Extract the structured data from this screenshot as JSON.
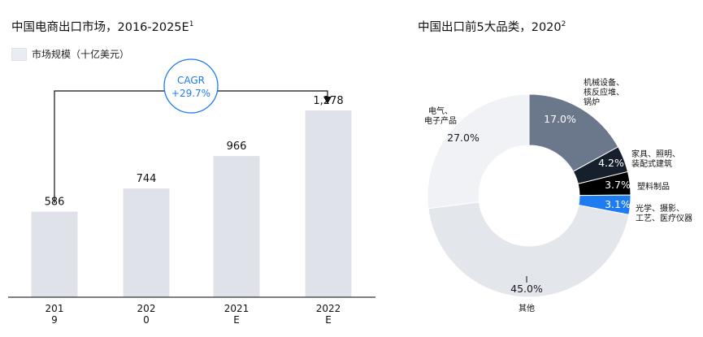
{
  "left_chart": {
    "title": "中国电商出口市场，2016-2025E",
    "title_sup": "1",
    "legend_label": "市场规模（十亿美元）",
    "cagr_label": "CAGR",
    "cagr_value": "+29.7%"
  },
  "right_chart": {
    "title": "中国出口前5大品类，2020",
    "title_sup": "2"
  },
  "colors": {
    "bar": "#dfe3e9",
    "slice_machinery": "#6b778a",
    "slice_furniture": "#16202c",
    "slice_plastics": "#000000",
    "slice_optical": "#1f7bf2",
    "slice_other": "#e3e7ec",
    "slice_electronics": "#f0f2f5",
    "cagr_accent": "#1f7bf2"
  },
  "chart_data": [
    {
      "type": "bar",
      "categories": [
        [
          "201",
          "9"
        ],
        [
          "202",
          "0"
        ],
        [
          "2021",
          "E"
        ],
        [
          "2022",
          "E"
        ]
      ],
      "values": [
        586,
        744,
        966,
        1278
      ],
      "value_labels": [
        "586",
        "744",
        "966",
        "1,278"
      ],
      "title": "中国电商出口市场，2016-2025E",
      "ylabel": "市场规模（十亿美元）",
      "ylim": [
        0,
        1400
      ],
      "grid": false
    },
    {
      "type": "pie",
      "donut": true,
      "title": "中国出口前5大品类，2020",
      "slices": [
        {
          "key": "machinery",
          "label_lines": [
            "机械设备、",
            "核反应堆、",
            "锅炉"
          ],
          "value": 17.0,
          "value_label": "17.0%",
          "color_key": "slice_machinery",
          "value_text_color": "#ffffff"
        },
        {
          "key": "furniture",
          "label_lines": [
            "家具、照明、",
            "装配式建筑"
          ],
          "value": 4.2,
          "value_label": "4.2%",
          "color_key": "slice_furniture",
          "value_text_color": "#ffffff"
        },
        {
          "key": "plastics",
          "label_lines": [
            "塑料制品"
          ],
          "value": 3.7,
          "value_label": "3.7%",
          "color_key": "slice_plastics",
          "value_text_color": "#ffffff"
        },
        {
          "key": "optical",
          "label_lines": [
            "光学、摄影、",
            "工艺、医疗仪器"
          ],
          "value": 3.1,
          "value_label": "3.1%",
          "color_key": "slice_optical",
          "value_text_color": "#ffffff"
        },
        {
          "key": "other",
          "label_lines": [
            "其他"
          ],
          "value": 45.0,
          "value_label": "45.0%",
          "color_key": "slice_other",
          "value_text_color": "#1a1a1a"
        },
        {
          "key": "electronics",
          "label_lines": [
            "电气、",
            "电子产品"
          ],
          "value": 27.0,
          "value_label": "27.0%",
          "color_key": "slice_electronics",
          "value_text_color": "#1a1a1a"
        }
      ]
    }
  ]
}
